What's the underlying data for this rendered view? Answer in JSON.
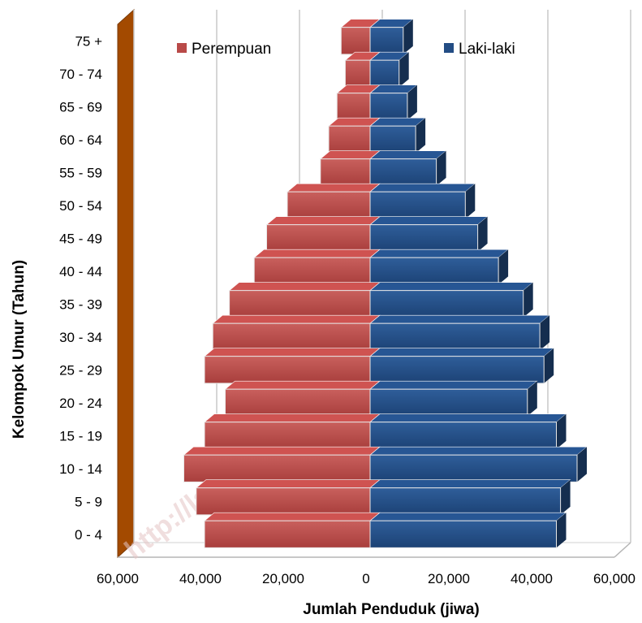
{
  "chart_data": {
    "type": "bar",
    "orientation": "horizontal",
    "variant": "population-pyramid",
    "categories": [
      "0 - 4",
      "5 - 9",
      "10 - 14",
      "15 - 19",
      "20 - 24",
      "25 - 29",
      "30 - 34",
      "35 - 39",
      "40 - 44",
      "45 - 49",
      "50 - 54",
      "55 - 59",
      "60 - 64",
      "65 - 69",
      "70 - 74",
      "75 +"
    ],
    "series": [
      {
        "name": "Perempuan",
        "side": "left",
        "color": "#b94a48",
        "values": [
          40000,
          42000,
          45000,
          40000,
          35000,
          40000,
          38000,
          34000,
          28000,
          25000,
          20000,
          12000,
          10000,
          8000,
          6000,
          7000
        ]
      },
      {
        "name": "Laki-laki",
        "side": "right",
        "color": "#234d84",
        "values": [
          45000,
          46000,
          50000,
          45000,
          38000,
          42000,
          41000,
          37000,
          31000,
          26000,
          23000,
          16000,
          11000,
          9000,
          7000,
          8000
        ]
      }
    ],
    "xlim": [
      -60000,
      60000
    ],
    "xticks": [
      "60,000",
      "40,000",
      "20,000",
      "0",
      "20,000",
      "40,000",
      "60,000"
    ],
    "xtick_values": [
      -60000,
      -40000,
      -20000,
      0,
      20000,
      40000,
      60000
    ],
    "xlabel": "Jumlah Penduduk (jiwa)",
    "ylabel": "Kelompok Umur (Tahun)",
    "legend_position": "top",
    "grid": "vertical",
    "style": "3d",
    "watermark": "http://lampungselatankab.bps.go.id"
  }
}
